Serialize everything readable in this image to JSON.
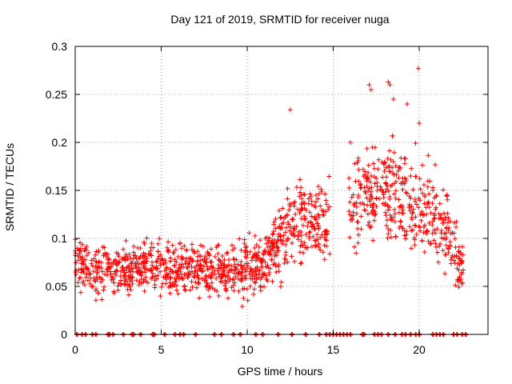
{
  "chart_data": {
    "type": "scatter",
    "title": "Day 121 of 2019, SRMTID for receiver nuga",
    "xlabel": "GPS time / hours",
    "ylabel": "SRMTID / TECUs",
    "xlim": [
      0,
      24
    ],
    "ylim": [
      0,
      0.3
    ],
    "xticks": [
      0,
      5,
      10,
      15,
      20
    ],
    "yticks": [
      0,
      0.05,
      0.1,
      0.15,
      0.2,
      0.25,
      0.3
    ],
    "grid": true,
    "marker": "+",
    "color": "#ff0000",
    "series_profile": [
      {
        "x": 0.0,
        "mean": 0.075,
        "spread": 0.025
      },
      {
        "x": 1.0,
        "mean": 0.072,
        "spread": 0.025
      },
      {
        "x": 2.0,
        "mean": 0.068,
        "spread": 0.022
      },
      {
        "x": 3.0,
        "mean": 0.065,
        "spread": 0.022
      },
      {
        "x": 4.0,
        "mean": 0.068,
        "spread": 0.022
      },
      {
        "x": 5.0,
        "mean": 0.075,
        "spread": 0.025
      },
      {
        "x": 6.0,
        "mean": 0.072,
        "spread": 0.025
      },
      {
        "x": 7.0,
        "mean": 0.065,
        "spread": 0.02
      },
      {
        "x": 8.0,
        "mean": 0.068,
        "spread": 0.022
      },
      {
        "x": 9.0,
        "mean": 0.065,
        "spread": 0.022
      },
      {
        "x": 10.0,
        "mean": 0.07,
        "spread": 0.025
      },
      {
        "x": 11.0,
        "mean": 0.075,
        "spread": 0.025
      },
      {
        "x": 12.0,
        "mean": 0.1,
        "spread": 0.035
      },
      {
        "x": 13.0,
        "mean": 0.12,
        "spread": 0.04
      },
      {
        "x": 14.0,
        "mean": 0.115,
        "spread": 0.035
      },
      {
        "x": 16.0,
        "mean": 0.13,
        "spread": 0.04
      },
      {
        "x": 17.0,
        "mean": 0.15,
        "spread": 0.04
      },
      {
        "x": 18.0,
        "mean": 0.16,
        "spread": 0.045
      },
      {
        "x": 19.0,
        "mean": 0.14,
        "spread": 0.04
      },
      {
        "x": 20.0,
        "mean": 0.13,
        "spread": 0.04
      },
      {
        "x": 21.0,
        "mean": 0.12,
        "spread": 0.04
      },
      {
        "x": 22.0,
        "mean": 0.09,
        "spread": 0.03
      },
      {
        "x": 22.6,
        "mean": 0.06,
        "spread": 0.02
      }
    ],
    "outliers": [
      {
        "x": 17.1,
        "y": 0.26
      },
      {
        "x": 17.2,
        "y": 0.255
      },
      {
        "x": 18.2,
        "y": 0.263
      },
      {
        "x": 18.3,
        "y": 0.26
      },
      {
        "x": 19.95,
        "y": 0.277
      },
      {
        "x": 19.3,
        "y": 0.24
      },
      {
        "x": 18.5,
        "y": 0.245
      },
      {
        "x": 12.5,
        "y": 0.234
      },
      {
        "x": 16.0,
        "y": 0.2
      },
      {
        "x": 20.0,
        "y": 0.22
      }
    ],
    "zero_markers_x": [
      0.1,
      0.4,
      0.6,
      1.0,
      1.2,
      1.9,
      2.0,
      2.2,
      2.8,
      3.3,
      3.4,
      3.8,
      4.5,
      4.6,
      5.2,
      5.8,
      6.1,
      6.3,
      7.0,
      8.1,
      8.5,
      9.2,
      9.6,
      10.5,
      10.9,
      11.8,
      12.6,
      13.4,
      14.2,
      14.6,
      14.8,
      15.0,
      15.2,
      15.4,
      15.6,
      15.8,
      16.0,
      16.7,
      16.8,
      17.4,
      17.6,
      17.8,
      18.2,
      18.6,
      19.0,
      19.2,
      19.5,
      19.8,
      20.0,
      20.8,
      21.0,
      21.2,
      21.4,
      22.0,
      22.2,
      22.5,
      22.7
    ]
  }
}
